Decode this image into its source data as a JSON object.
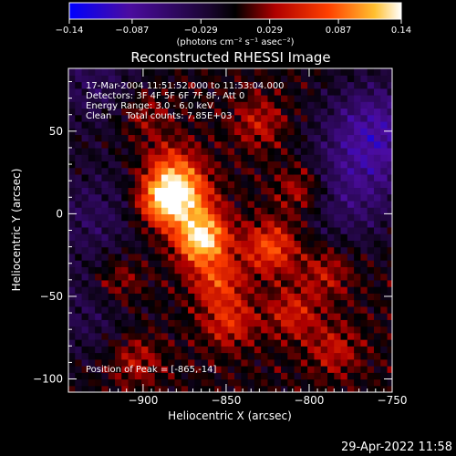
{
  "chart_data": {
    "type": "heatmap",
    "title": "Reconstructed RHESSI Image",
    "xlabel": "Heliocentric X (arcsec)",
    "ylabel": "Heliocentric Y (arcsec)",
    "xlim": [
      -945,
      -750
    ],
    "ylim": [
      -108,
      88
    ],
    "xticks": [
      -900,
      -850,
      -800,
      -750
    ],
    "xtick_labels": [
      "−900",
      "−850",
      "−800",
      "−750"
    ],
    "yticks": [
      50,
      0,
      -50,
      -100
    ],
    "ytick_labels": [
      "50",
      "0",
      "−50",
      "−100"
    ],
    "colorbar": {
      "range": [
        -0.14,
        0.14
      ],
      "ticks": [
        -0.14,
        -0.087,
        -0.029,
        0.029,
        0.087,
        0.14
      ],
      "tick_labels": [
        "−0.14",
        "−0.087",
        "−0.029",
        "0.029",
        "0.087",
        "0.14"
      ],
      "unit_label": "(photons cm⁻² s⁻¹ asec⁻²)",
      "colors": [
        "#0000ff",
        "#4b0ca0",
        "#1a0530",
        "#000000",
        "#b00000",
        "#ff4000",
        "#ffc030",
        "#ffffff"
      ]
    },
    "annotations": {
      "time_range": "17-Mar-2004 11:51:52.000 to 11:53:04.000",
      "detectors": "Detectors: 3F 4F 5F 6F 7F 8F, Att 0",
      "energy_range": "Energy Range: 3.0 - 6.0 keV",
      "method_and_counts": "Clean     Total counts: 7.85E+03",
      "peak_position": "Position of Peak = [-865,-14]"
    },
    "sources": [
      {
        "x": -865,
        "y": -14,
        "intensity": 1.0
      },
      {
        "x": -888,
        "y": 8,
        "intensity": 0.85
      },
      {
        "x": -873,
        "y": 12,
        "intensity": 0.55
      },
      {
        "x": -883,
        "y": 28,
        "intensity": 0.45
      },
      {
        "x": -855,
        "y": -40,
        "intensity": 0.45
      },
      {
        "x": -823,
        "y": -20,
        "intensity": 0.55
      },
      {
        "x": -805,
        "y": 15,
        "intensity": 0.35
      },
      {
        "x": -848,
        "y": -65,
        "intensity": 0.4
      },
      {
        "x": -810,
        "y": -60,
        "intensity": 0.35
      },
      {
        "x": -915,
        "y": -40,
        "intensity": 0.3
      },
      {
        "x": -785,
        "y": -82,
        "intensity": 0.3
      },
      {
        "x": -905,
        "y": -88,
        "intensity": 0.3
      },
      {
        "x": -830,
        "y": 55,
        "intensity": 0.3
      },
      {
        "x": -900,
        "y": 60,
        "intensity": 0.25
      },
      {
        "x": -790,
        "y": -35,
        "intensity": 0.3
      }
    ],
    "negative_regions": [
      {
        "x": -760,
        "y": 50,
        "intensity": -0.6
      },
      {
        "x": -775,
        "y": 10,
        "intensity": -0.35
      },
      {
        "x": -930,
        "y": 0,
        "intensity": -0.3
      },
      {
        "x": -935,
        "y": -60,
        "intensity": -0.25
      },
      {
        "x": -930,
        "y": 80,
        "intensity": -0.3
      }
    ]
  },
  "footer": {
    "date_stamp": "29-Apr-2022 11:58"
  }
}
